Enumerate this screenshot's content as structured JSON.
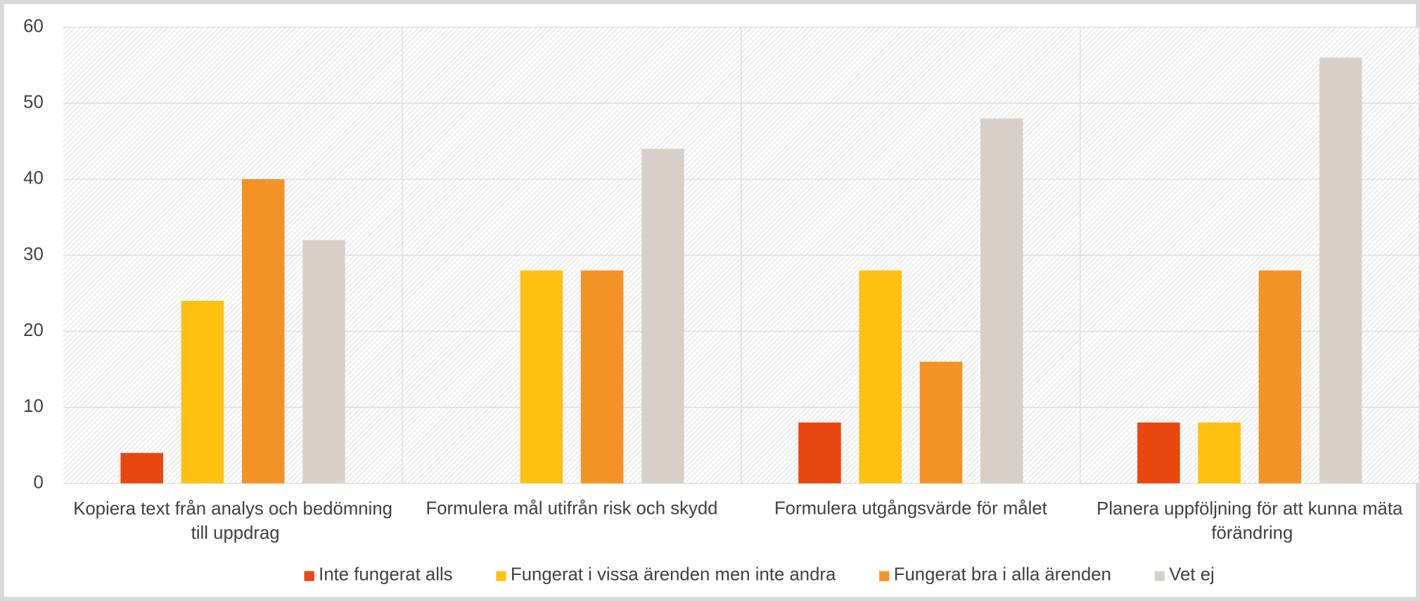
{
  "chart_data": {
    "type": "bar",
    "categories": [
      "Kopiera text från analys och bedömning till uppdrag",
      "Formulera mål utifrån risk och skydd",
      "Formulera utgångsvärde för målet",
      "Planera uppföljning för att kunna mäta förändring"
    ],
    "series": [
      {
        "name": "Inte fungerat alls",
        "color": "#e8470f",
        "values": [
          4,
          0,
          8,
          8
        ]
      },
      {
        "name": "Fungerat i vissa ärenden men inte andra",
        "color": "#ffc00f",
        "values": [
          24,
          28,
          28,
          8
        ]
      },
      {
        "name": "Fungerat bra i alla ärenden",
        "color": "#f39326",
        "values": [
          40,
          28,
          16,
          28
        ]
      },
      {
        "name": "Vet ej",
        "color": "#d8d0c8",
        "values": [
          32,
          44,
          48,
          56
        ]
      }
    ],
    "ylim": [
      0,
      60
    ],
    "yticks": [
      0,
      10,
      20,
      30,
      40,
      50,
      60
    ],
    "grid": true,
    "legend": "bottom"
  }
}
